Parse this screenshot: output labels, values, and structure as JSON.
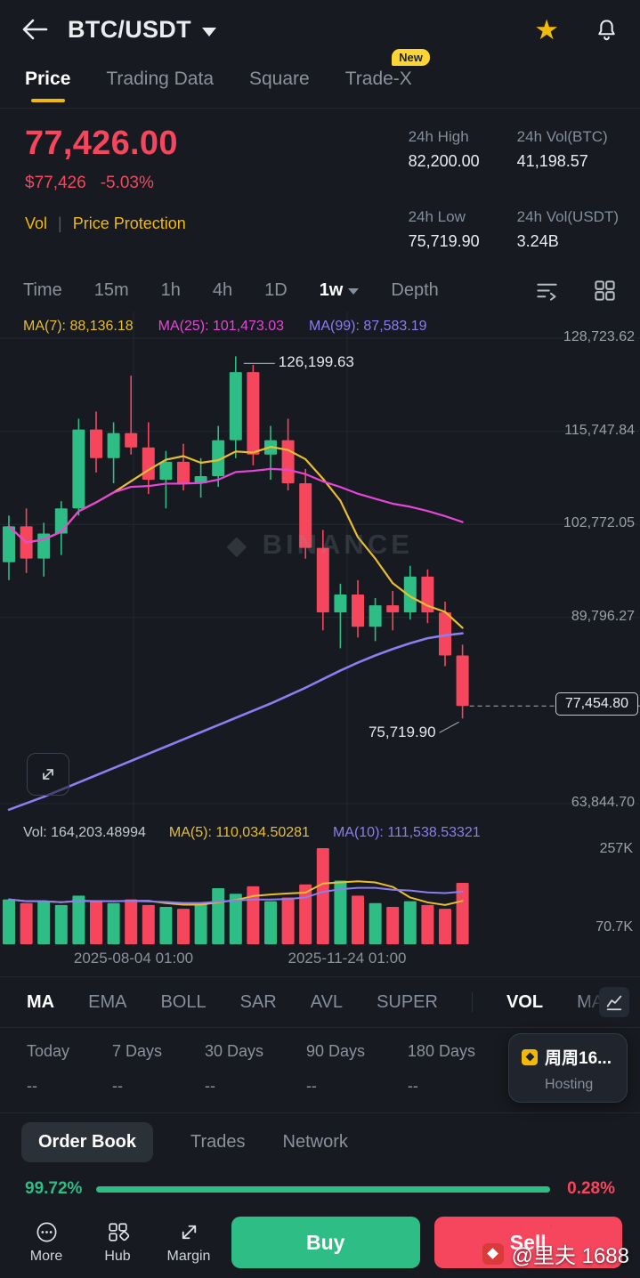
{
  "colors": {
    "background": "#171A20",
    "accent_yellow": "#F0B90B",
    "red": "#F6465D",
    "green": "#2EBD85",
    "text_primary": "#EAECEF",
    "text_secondary": "#848E9C",
    "ma7_yellow": "#E8BD31",
    "ma25_pink": "#E646D8",
    "ma99_purple": "#8C7DF0",
    "grid": "#232730"
  },
  "topbar": {
    "title": "BTC/USDT"
  },
  "tabs": [
    {
      "label": "Price",
      "active": true
    },
    {
      "label": "Trading Data"
    },
    {
      "label": "Square"
    },
    {
      "label": "Trade-X",
      "badge": "New"
    }
  ],
  "ticker": {
    "last_price": "77,426.00",
    "fiat_value": "$77,426",
    "change_pct": "-5.03%",
    "vol_link": "Vol",
    "separator": "|",
    "protection_link": "Price Protection",
    "stats": [
      {
        "label": "24h High",
        "value": "82,200.00"
      },
      {
        "label": "24h Vol(BTC)",
        "value": "41,198.57"
      },
      {
        "label": "24h Low",
        "value": "75,719.90"
      },
      {
        "label": "24h Vol(USDT)",
        "value": "3.24B"
      }
    ]
  },
  "timeframes": {
    "items": [
      "Time",
      "15m",
      "1h",
      "4h",
      "1D",
      "1w"
    ],
    "selected": "1w",
    "depth_label": "Depth"
  },
  "chart_data": {
    "type": "candlestick",
    "symbol": "BTC/USDT",
    "interval": "1w",
    "watermark": "BINANCE",
    "legend": {
      "ma7": "MA(7): 88,136.18",
      "ma25": "MA(25): 101,473.03",
      "ma99": "MA(99): 87,583.19"
    },
    "y_ticks": [
      128723.62,
      115747.84,
      102772.05,
      89796.27,
      63844.7
    ],
    "y_tick_labels": [
      "128,723.62",
      "115,747.84",
      "102,772.05",
      "89,796.27",
      "63,844.70"
    ],
    "x_tick_labels": [
      "2025-08-04 01:00",
      "2025-11-24 01:00"
    ],
    "high_label": "126,199.63",
    "low_label": "75,719.90",
    "last_price_label": "77,454.80",
    "last_price_value": 77454.8,
    "candles_ohlc": [
      [
        97500,
        104000,
        95000,
        102500
      ],
      [
        102500,
        105000,
        96000,
        98000
      ],
      [
        98000,
        103000,
        95500,
        101500
      ],
      [
        101500,
        106000,
        98500,
        105000
      ],
      [
        105000,
        117500,
        104000,
        116000
      ],
      [
        116000,
        118500,
        110000,
        112000
      ],
      [
        112000,
        117000,
        108500,
        115500
      ],
      [
        115500,
        123500,
        112500,
        113500
      ],
      [
        113500,
        117000,
        107000,
        109000
      ],
      [
        109000,
        113000,
        105000,
        111500
      ],
      [
        111500,
        114000,
        107500,
        108500
      ],
      [
        108500,
        112000,
        106500,
        109500
      ],
      [
        109500,
        116500,
        108000,
        114500
      ],
      [
        114500,
        126199.63,
        112000,
        124000
      ],
      [
        124000,
        125000,
        111000,
        112500
      ],
      [
        112500,
        116500,
        109000,
        114500
      ],
      [
        114500,
        117500,
        107500,
        108500
      ],
      [
        108500,
        110500,
        98000,
        99500
      ],
      [
        99500,
        102000,
        88000,
        90500
      ],
      [
        90500,
        94500,
        85500,
        93000
      ],
      [
        93000,
        95000,
        87000,
        88500
      ],
      [
        88500,
        92500,
        86500,
        91500
      ],
      [
        91500,
        93500,
        88000,
        90500
      ],
      [
        90500,
        97000,
        89500,
        95500
      ],
      [
        95500,
        96500,
        89000,
        90500
      ],
      [
        90500,
        92000,
        83000,
        84500
      ],
      [
        84500,
        86000,
        75719.9,
        77454.8
      ]
    ],
    "ma99_values": [
      63000,
      63900,
      64800,
      65800,
      66800,
      67800,
      68800,
      69800,
      70800,
      71800,
      72800,
      73800,
      74800,
      75800,
      76800,
      77800,
      78900,
      80000,
      81200,
      82400,
      83500,
      84500,
      85400,
      86200,
      86900,
      87300,
      87583.19
    ],
    "volume": {
      "legend": {
        "vol": "Vol: 164,203.48994",
        "ma5": "MA(5): 110,034.50281",
        "ma10": "MA(10): 111,538.53321"
      },
      "y_labels": [
        "257K",
        "70.7K"
      ],
      "max_k": 257,
      "values_k": [
        120,
        110,
        115,
        105,
        130,
        115,
        110,
        120,
        105,
        100,
        95,
        110,
        150,
        135,
        155,
        115,
        125,
        160,
        257,
        170,
        130,
        110,
        100,
        115,
        105,
        95,
        164.2
      ]
    }
  },
  "indicator_bar": {
    "overlays": [
      "MA",
      "EMA",
      "BOLL",
      "SAR",
      "AVL",
      "SUPER"
    ],
    "subs": [
      "VOL",
      "MACD"
    ],
    "active_overlay": "MA",
    "active_sub": "VOL"
  },
  "periods": [
    {
      "label": "Today",
      "value": "--"
    },
    {
      "label": "7 Days",
      "value": "--"
    },
    {
      "label": "30 Days",
      "value": "--"
    },
    {
      "label": "90 Days",
      "value": "--"
    },
    {
      "label": "180 Days",
      "value": "--"
    }
  ],
  "promo_card": {
    "title": "周周16...",
    "subtitle": "Hosting"
  },
  "bottom_tabs": [
    {
      "label": "Order Book",
      "active": true
    },
    {
      "label": "Trades"
    },
    {
      "label": "Network"
    }
  ],
  "ratio": {
    "buy_label": "99.72%",
    "sell_label": "0.28%",
    "buy_pct": 99.72
  },
  "action_bar": {
    "more": "More",
    "hub": "Hub",
    "margin": "Margin",
    "buy": "Buy",
    "sell": "Sell"
  },
  "overlay_watermark": "@里夫 1688"
}
